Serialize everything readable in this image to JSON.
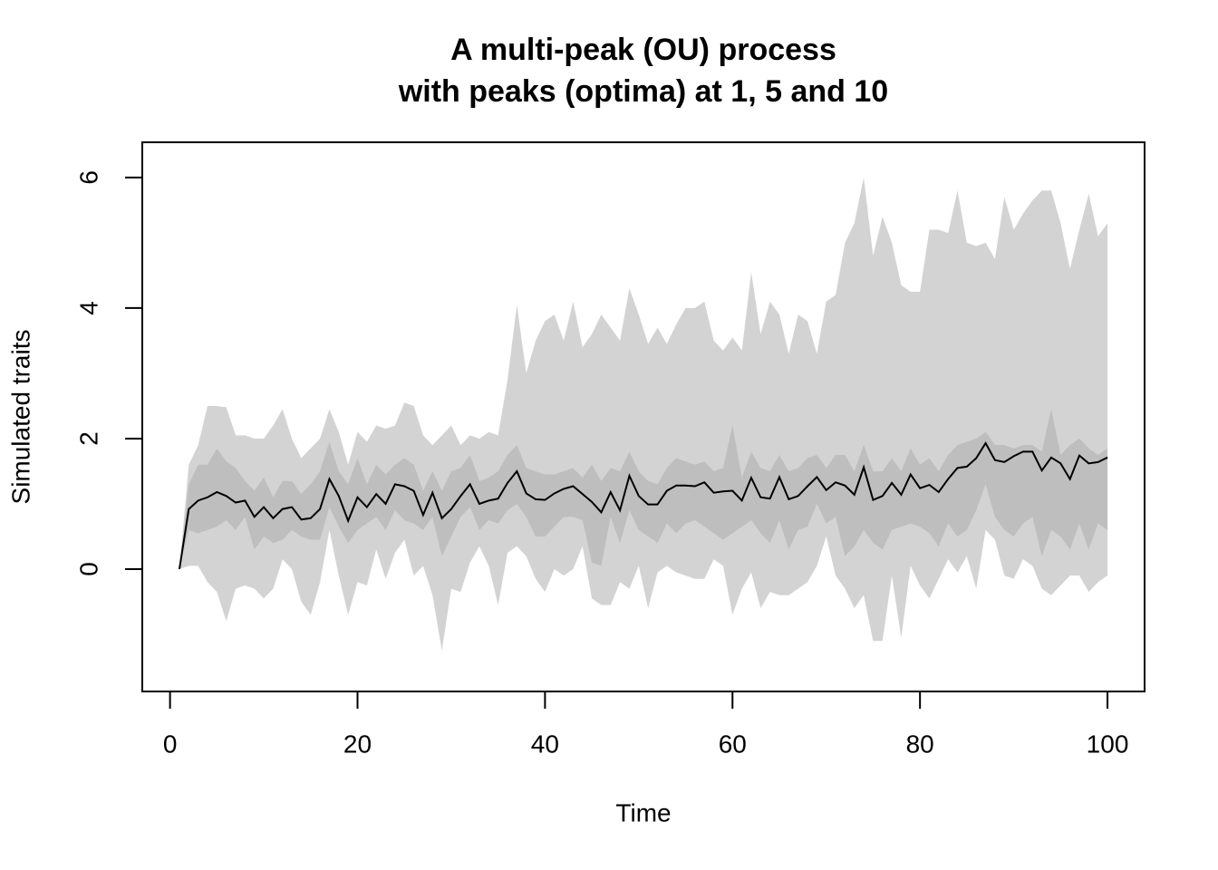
{
  "chart_data": {
    "type": "line",
    "title": [
      "A multi-peak (OU) process",
      "with peaks (optima) at 1, 5 and 10"
    ],
    "xlabel": "Time",
    "ylabel": "Simulated traits",
    "xlim": [
      -2.96,
      103.96
    ],
    "ylim": [
      -1.875,
      6.54
    ],
    "xticks": [
      0,
      20,
      40,
      60,
      80,
      100
    ],
    "yticks": [
      0,
      2,
      4,
      6
    ],
    "grid": false,
    "x": [
      1,
      2,
      3,
      4,
      5,
      6,
      7,
      8,
      9,
      10,
      11,
      12,
      13,
      14,
      15,
      16,
      17,
      18,
      19,
      20,
      21,
      22,
      23,
      24,
      25,
      26,
      27,
      28,
      29,
      30,
      31,
      32,
      33,
      34,
      35,
      36,
      37,
      38,
      39,
      40,
      41,
      42,
      43,
      44,
      45,
      46,
      47,
      48,
      49,
      50,
      51,
      52,
      53,
      54,
      55,
      56,
      57,
      58,
      59,
      60,
      61,
      62,
      63,
      64,
      65,
      66,
      67,
      68,
      69,
      70,
      71,
      72,
      73,
      74,
      75,
      76,
      77,
      78,
      79,
      80,
      81,
      82,
      83,
      84,
      85,
      86,
      87,
      88,
      89,
      90,
      91,
      92,
      93,
      94,
      95,
      96,
      97,
      98,
      99,
      100
    ],
    "bands": [
      {
        "color": "#d3d3d3",
        "upper": [
          0,
          1.6,
          1.9,
          2.5,
          2.5,
          2.48,
          2.05,
          2.05,
          2.0,
          2.0,
          2.2,
          2.45,
          2.0,
          1.7,
          1.85,
          2.0,
          2.45,
          2.1,
          1.6,
          2.1,
          1.95,
          2.2,
          2.15,
          2.2,
          2.55,
          2.5,
          2.05,
          1.9,
          2.05,
          2.2,
          1.9,
          2.05,
          2.0,
          2.1,
          2.05,
          2.9,
          4.05,
          3.0,
          3.5,
          3.8,
          3.9,
          3.5,
          4.1,
          3.4,
          3.6,
          3.9,
          3.7,
          3.5,
          4.3,
          3.9,
          3.45,
          3.7,
          3.45,
          3.75,
          4.0,
          4.0,
          4.1,
          3.5,
          3.35,
          3.55,
          3.35,
          4.55,
          3.6,
          4.1,
          3.9,
          3.3,
          3.9,
          3.8,
          3.3,
          4.1,
          4.2,
          5.0,
          5.3,
          6.0,
          4.8,
          5.4,
          5.0,
          4.35,
          4.25,
          4.25,
          5.2,
          5.2,
          5.15,
          5.8,
          5.0,
          4.95,
          5.0,
          4.75,
          5.7,
          5.2,
          5.45,
          5.65,
          5.8,
          5.8,
          5.3,
          4.6,
          5.2,
          5.75,
          5.1,
          5.3
        ],
        "lower": [
          0,
          0.05,
          0.05,
          -0.2,
          -0.35,
          -0.8,
          -0.3,
          -0.25,
          -0.3,
          -0.45,
          -0.3,
          0.15,
          0.0,
          -0.5,
          -0.7,
          -0.2,
          0.6,
          -0.1,
          -0.7,
          -0.2,
          -0.25,
          0.3,
          -0.15,
          0.25,
          0.45,
          -0.1,
          0.05,
          -0.4,
          -1.25,
          -0.3,
          -0.35,
          0.1,
          0.35,
          0.05,
          -0.55,
          0.25,
          0.35,
          0.2,
          -0.15,
          -0.35,
          0.0,
          -0.1,
          0.0,
          0.35,
          -0.45,
          -0.55,
          -0.55,
          -0.2,
          -0.3,
          0.05,
          -0.6,
          -0.05,
          0.05,
          -0.05,
          -0.1,
          -0.15,
          -0.15,
          0.15,
          0.05,
          -0.7,
          -0.3,
          -0.05,
          -0.6,
          -0.35,
          -0.4,
          -0.4,
          -0.3,
          -0.2,
          0.05,
          0.5,
          -0.1,
          -0.3,
          -0.6,
          -0.4,
          -1.1,
          -1.1,
          -0.1,
          -1.05,
          0.05,
          -0.25,
          -0.45,
          -0.15,
          0.15,
          -0.05,
          0.2,
          -0.3,
          0.6,
          0.45,
          -0.1,
          -0.15,
          0.15,
          0.05,
          -0.3,
          -0.4,
          -0.25,
          -0.1,
          -0.1,
          -0.35,
          -0.2,
          -0.1
        ]
      },
      {
        "color": "#bebebe",
        "upper": [
          0,
          1.3,
          1.6,
          1.6,
          1.85,
          1.65,
          1.55,
          1.35,
          1.2,
          1.4,
          1.1,
          1.35,
          1.35,
          1.15,
          1.3,
          1.5,
          1.95,
          1.5,
          1.3,
          1.7,
          1.3,
          1.6,
          1.45,
          1.6,
          1.7,
          1.6,
          1.2,
          1.5,
          1.2,
          1.5,
          1.55,
          1.75,
          1.35,
          1.4,
          1.5,
          1.75,
          1.9,
          1.55,
          1.5,
          1.45,
          1.45,
          1.5,
          1.55,
          1.4,
          1.6,
          1.35,
          1.55,
          1.5,
          1.8,
          1.5,
          1.35,
          1.3,
          1.55,
          1.7,
          1.65,
          1.6,
          1.65,
          1.5,
          1.55,
          2.2,
          1.4,
          1.8,
          1.55,
          1.5,
          1.75,
          1.5,
          1.55,
          1.7,
          1.75,
          1.55,
          1.75,
          1.75,
          1.5,
          1.9,
          1.5,
          1.5,
          1.7,
          1.5,
          1.85,
          1.6,
          1.7,
          1.5,
          1.75,
          1.9,
          1.95,
          2.0,
          2.1,
          1.9,
          1.9,
          1.85,
          1.9,
          1.9,
          1.8,
          2.45,
          1.75,
          1.9,
          2.0,
          1.85,
          1.75,
          1.85
        ],
        "lower": [
          0,
          0.6,
          0.55,
          0.6,
          0.65,
          0.75,
          0.6,
          0.8,
          0.3,
          0.5,
          0.4,
          0.45,
          0.6,
          0.5,
          0.45,
          0.45,
          0.95,
          0.65,
          0.4,
          0.6,
          0.7,
          0.8,
          0.6,
          0.9,
          0.75,
          0.7,
          0.6,
          0.8,
          0.2,
          0.5,
          0.8,
          0.95,
          0.6,
          0.75,
          0.7,
          0.9,
          1.0,
          0.8,
          0.5,
          0.5,
          0.65,
          0.8,
          0.8,
          0.75,
          0.1,
          0.05,
          0.8,
          0.4,
          0.9,
          0.6,
          0.5,
          0.4,
          0.7,
          0.55,
          0.7,
          0.75,
          0.65,
          0.55,
          0.45,
          0.55,
          0.65,
          0.75,
          0.55,
          0.4,
          0.75,
          0.3,
          0.6,
          0.65,
          1.0,
          0.7,
          0.8,
          0.2,
          0.35,
          0.6,
          0.4,
          0.3,
          0.6,
          0.65,
          0.7,
          0.65,
          0.55,
          0.35,
          0.7,
          0.5,
          0.6,
          0.9,
          1.3,
          0.8,
          0.6,
          0.5,
          0.7,
          0.8,
          0.2,
          0.6,
          0.5,
          0.3,
          0.7,
          0.3,
          0.7,
          0.6
        ]
      }
    ],
    "series": [
      {
        "color": "#000000",
        "values": [
          0,
          0.92,
          1.05,
          1.1,
          1.18,
          1.12,
          1.02,
          1.05,
          0.8,
          0.95,
          0.78,
          0.92,
          0.95,
          0.76,
          0.78,
          0.92,
          1.38,
          1.12,
          0.74,
          1.1,
          0.95,
          1.15,
          1.0,
          1.3,
          1.27,
          1.2,
          0.83,
          1.17,
          0.78,
          0.92,
          1.12,
          1.3,
          1.0,
          1.05,
          1.08,
          1.32,
          1.5,
          1.16,
          1.07,
          1.06,
          1.16,
          1.23,
          1.27,
          1.15,
          1.03,
          0.87,
          1.18,
          0.9,
          1.43,
          1.12,
          0.99,
          0.99,
          1.2,
          1.28,
          1.28,
          1.27,
          1.33,
          1.17,
          1.19,
          1.2,
          1.05,
          1.4,
          1.1,
          1.08,
          1.41,
          1.07,
          1.12,
          1.27,
          1.41,
          1.21,
          1.33,
          1.28,
          1.14,
          1.56,
          1.06,
          1.12,
          1.32,
          1.14,
          1.45,
          1.24,
          1.29,
          1.18,
          1.38,
          1.55,
          1.57,
          1.7,
          1.93,
          1.67,
          1.64,
          1.73,
          1.8,
          1.8,
          1.51,
          1.71,
          1.62,
          1.38,
          1.74,
          1.62,
          1.64,
          1.71
        ]
      }
    ]
  }
}
